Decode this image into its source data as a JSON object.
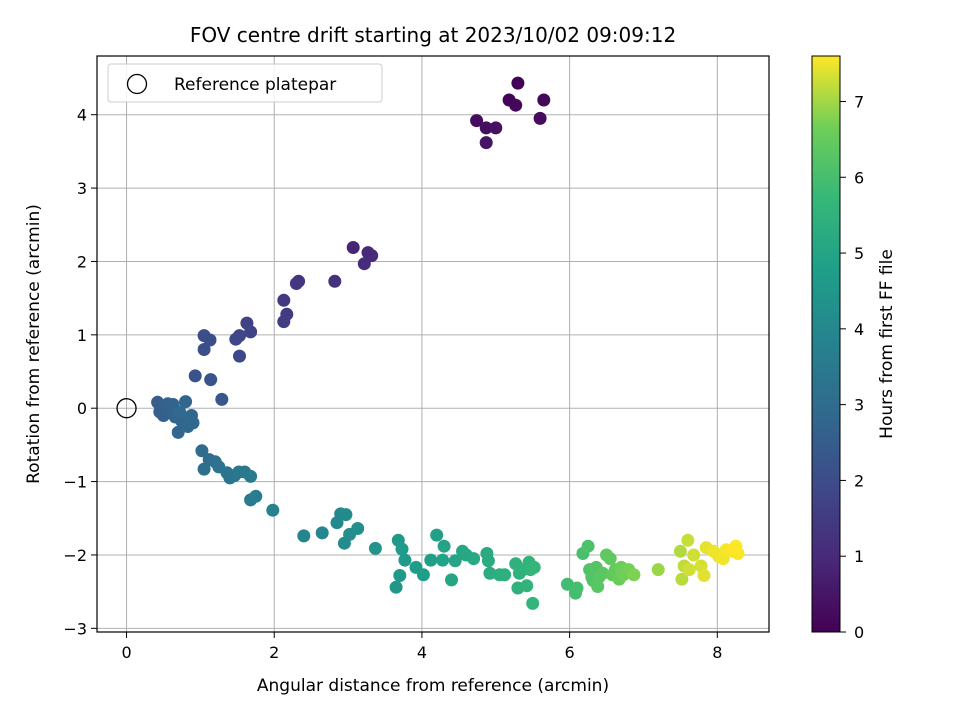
{
  "chart_data": {
    "type": "scatter",
    "title": "FOV centre drift starting at 2023/10/02 09:09:12",
    "xlabel": "Angular distance from reference (arcmin)",
    "ylabel": "Rotation from reference (arcmin)",
    "xlim": [
      -0.4,
      8.7
    ],
    "ylim": [
      -3.05,
      4.8
    ],
    "xticks": [
      "0",
      "2",
      "4",
      "6",
      "8"
    ],
    "yticks": [
      "−3",
      "−2",
      "−1",
      "0",
      "1",
      "2",
      "3",
      "4"
    ],
    "grid": true,
    "legend": {
      "placement": "top-left",
      "entries": [
        "Reference platepar"
      ]
    },
    "reference_point": {
      "x": 0,
      "y": 0
    },
    "colorbar": {
      "label": "Hours from first FF file",
      "range": [
        0,
        7.6
      ],
      "ticks": [
        "0",
        "1",
        "2",
        "3",
        "4",
        "5",
        "6",
        "7"
      ],
      "colormap": "viridis"
    },
    "points": [
      [
        5.3,
        4.43,
        0.05
      ],
      [
        5.18,
        4.2,
        0.1
      ],
      [
        5.27,
        4.13,
        0.15
      ],
      [
        5.65,
        4.2,
        0.2
      ],
      [
        5.6,
        3.95,
        0.25
      ],
      [
        4.74,
        3.92,
        0.3
      ],
      [
        4.87,
        3.82,
        0.35
      ],
      [
        5.0,
        3.82,
        0.4
      ],
      [
        4.87,
        3.62,
        0.45
      ],
      [
        3.07,
        2.19,
        0.9
      ],
      [
        3.27,
        2.12,
        1.0
      ],
      [
        3.32,
        2.08,
        1.05
      ],
      [
        3.22,
        1.97,
        1.1
      ],
      [
        2.82,
        1.73,
        1.2
      ],
      [
        2.33,
        1.73,
        1.3
      ],
      [
        2.3,
        1.7,
        1.35
      ],
      [
        2.13,
        1.47,
        1.45
      ],
      [
        2.17,
        1.28,
        1.5
      ],
      [
        2.13,
        1.18,
        1.55
      ],
      [
        1.63,
        1.16,
        1.7
      ],
      [
        1.68,
        1.04,
        1.75
      ],
      [
        1.53,
        0.99,
        1.8
      ],
      [
        1.48,
        0.94,
        1.85
      ],
      [
        1.53,
        0.71,
        1.9
      ],
      [
        1.05,
        0.99,
        2.0
      ],
      [
        1.13,
        0.93,
        2.05
      ],
      [
        1.05,
        0.8,
        2.1
      ],
      [
        0.93,
        0.44,
        2.2
      ],
      [
        1.14,
        0.39,
        2.25
      ],
      [
        1.29,
        0.12,
        2.35
      ],
      [
        0.42,
        0.08,
        2.5
      ],
      [
        0.48,
        0.0,
        2.55
      ],
      [
        0.45,
        -0.05,
        2.6
      ],
      [
        0.5,
        -0.1,
        2.62
      ],
      [
        0.56,
        0.06,
        2.65
      ],
      [
        0.6,
        -0.02,
        2.7
      ],
      [
        0.63,
        0.05,
        2.72
      ],
      [
        0.66,
        -0.12,
        2.75
      ],
      [
        0.7,
        -0.33,
        2.78
      ],
      [
        0.75,
        -0.18,
        2.8
      ],
      [
        0.8,
        0.09,
        2.82
      ],
      [
        0.83,
        -0.25,
        2.85
      ],
      [
        0.88,
        -0.1,
        2.88
      ],
      [
        0.9,
        -0.2,
        2.9
      ],
      [
        0.72,
        -0.05,
        2.92
      ],
      [
        1.02,
        -0.58,
        3.0
      ],
      [
        1.12,
        -0.7,
        3.05
      ],
      [
        1.05,
        -0.83,
        3.1
      ],
      [
        1.2,
        -0.73,
        3.15
      ],
      [
        1.25,
        -0.8,
        3.2
      ],
      [
        1.36,
        -0.88,
        3.25
      ],
      [
        1.4,
        -0.95,
        3.3
      ],
      [
        1.46,
        -0.92,
        3.35
      ],
      [
        1.52,
        -0.87,
        3.4
      ],
      [
        1.6,
        -0.87,
        3.45
      ],
      [
        1.68,
        -0.93,
        3.5
      ],
      [
        1.68,
        -1.25,
        3.55
      ],
      [
        1.75,
        -1.2,
        3.6
      ],
      [
        1.98,
        -1.39,
        3.75
      ],
      [
        2.4,
        -1.74,
        3.9
      ],
      [
        2.65,
        -1.7,
        3.95
      ],
      [
        2.85,
        -1.56,
        4.0
      ],
      [
        2.9,
        -1.44,
        4.05
      ],
      [
        2.97,
        -1.45,
        4.1
      ],
      [
        2.95,
        -1.84,
        4.15
      ],
      [
        3.02,
        -1.72,
        4.2
      ],
      [
        3.13,
        -1.64,
        4.25
      ],
      [
        3.37,
        -1.91,
        4.4
      ],
      [
        3.65,
        -2.44,
        4.5
      ],
      [
        3.68,
        -1.8,
        4.55
      ],
      [
        3.7,
        -2.28,
        4.55
      ],
      [
        3.73,
        -1.92,
        4.6
      ],
      [
        3.77,
        -2.07,
        4.65
      ],
      [
        3.92,
        -2.17,
        4.7
      ],
      [
        4.02,
        -2.27,
        4.75
      ],
      [
        4.12,
        -2.07,
        4.8
      ],
      [
        4.2,
        -1.73,
        4.85
      ],
      [
        4.28,
        -2.07,
        4.9
      ],
      [
        4.3,
        -1.88,
        4.95
      ],
      [
        4.4,
        -2.34,
        5.0
      ],
      [
        4.45,
        -2.08,
        5.0
      ],
      [
        4.55,
        -1.95,
        5.05
      ],
      [
        4.6,
        -2.0,
        5.1
      ],
      [
        4.7,
        -2.05,
        5.15
      ],
      [
        4.88,
        -1.98,
        5.2
      ],
      [
        4.9,
        -2.08,
        5.25
      ],
      [
        4.92,
        -2.25,
        5.3
      ],
      [
        5.05,
        -2.27,
        5.35
      ],
      [
        5.12,
        -2.27,
        5.4
      ],
      [
        5.27,
        -2.12,
        5.45
      ],
      [
        5.3,
        -2.45,
        5.45
      ],
      [
        5.32,
        -2.25,
        5.5
      ],
      [
        5.37,
        -2.2,
        5.5
      ],
      [
        5.42,
        -2.42,
        5.55
      ],
      [
        5.45,
        -2.1,
        5.55
      ],
      [
        5.47,
        -2.2,
        5.6
      ],
      [
        5.5,
        -2.66,
        5.6
      ],
      [
        5.52,
        -2.17,
        5.65
      ],
      [
        5.97,
        -2.4,
        5.9
      ],
      [
        6.08,
        -2.52,
        5.95
      ],
      [
        6.1,
        -2.45,
        6.0
      ],
      [
        6.18,
        -1.98,
        6.05
      ],
      [
        6.25,
        -1.88,
        6.1
      ],
      [
        6.27,
        -2.2,
        6.15
      ],
      [
        6.3,
        -2.3,
        6.2
      ],
      [
        6.32,
        -2.35,
        6.2
      ],
      [
        6.36,
        -2.17,
        6.25
      ],
      [
        6.38,
        -2.43,
        6.3
      ],
      [
        6.4,
        -2.3,
        6.3
      ],
      [
        6.45,
        -2.25,
        6.35
      ],
      [
        6.5,
        -2.0,
        6.4
      ],
      [
        6.55,
        -2.05,
        6.4
      ],
      [
        6.58,
        -2.27,
        6.45
      ],
      [
        6.62,
        -2.2,
        6.5
      ],
      [
        6.67,
        -2.33,
        6.55
      ],
      [
        6.7,
        -2.17,
        6.6
      ],
      [
        6.73,
        -2.27,
        6.65
      ],
      [
        6.8,
        -2.2,
        6.7
      ],
      [
        6.87,
        -2.27,
        6.75
      ],
      [
        7.2,
        -2.2,
        6.95
      ],
      [
        7.5,
        -1.95,
        7.1
      ],
      [
        7.52,
        -2.33,
        7.15
      ],
      [
        7.55,
        -2.15,
        7.2
      ],
      [
        7.6,
        -1.8,
        7.25
      ],
      [
        7.62,
        -2.2,
        7.3
      ],
      [
        7.68,
        -2.0,
        7.3
      ],
      [
        7.78,
        -2.15,
        7.35
      ],
      [
        7.82,
        -2.28,
        7.4
      ],
      [
        7.85,
        -1.9,
        7.45
      ],
      [
        7.95,
        -1.95,
        7.5
      ],
      [
        8.02,
        -2.02,
        7.5
      ],
      [
        8.08,
        -2.05,
        7.52
      ],
      [
        8.12,
        -1.93,
        7.55
      ],
      [
        8.2,
        -1.95,
        7.58
      ],
      [
        8.25,
        -1.88,
        7.6
      ],
      [
        8.28,
        -1.98,
        7.6
      ]
    ]
  }
}
